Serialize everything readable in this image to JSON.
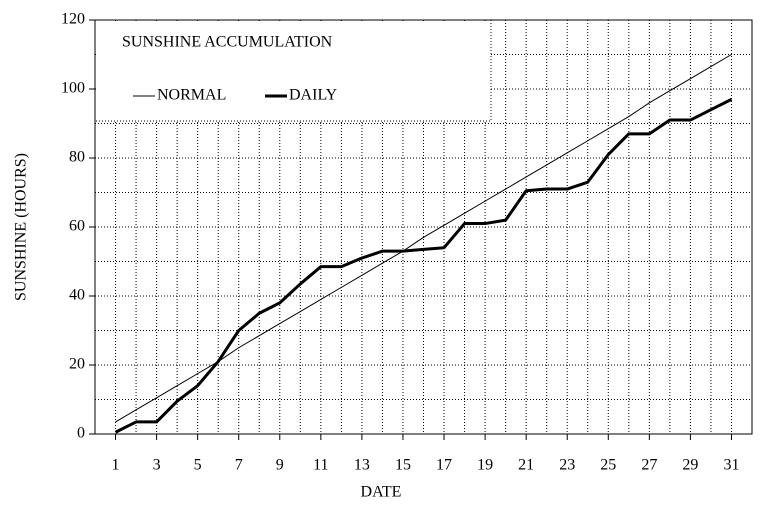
{
  "chart_data": {
    "type": "line",
    "title": "SUNSHINE ACCUMULATION",
    "x_label": "DATE",
    "y_label": "SUNSHINE (HOURS)",
    "x": [
      1,
      2,
      3,
      4,
      5,
      6,
      7,
      8,
      9,
      10,
      11,
      12,
      13,
      14,
      15,
      16,
      17,
      18,
      19,
      20,
      21,
      22,
      23,
      24,
      25,
      26,
      27,
      28,
      29,
      30,
      31
    ],
    "series": [
      {
        "name": "NORMAL",
        "color": "#000000",
        "width": 1,
        "values": [
          3.5,
          7,
          10.5,
          14,
          17.5,
          21,
          25,
          28.5,
          32,
          35.5,
          39,
          42.5,
          46,
          49.5,
          53,
          57,
          60.5,
          64,
          67.5,
          71,
          74.5,
          78,
          81.5,
          85,
          88.5,
          92,
          96,
          99.5,
          103,
          106.5,
          110
        ]
      },
      {
        "name": "DAILY",
        "color": "#000000",
        "width": 3,
        "values": [
          0.5,
          3.5,
          3.5,
          9.5,
          14,
          21,
          30,
          35,
          38,
          43.5,
          48.5,
          48.5,
          51,
          53,
          53,
          53.5,
          54,
          61,
          61,
          62,
          70.5,
          71,
          71,
          73,
          81,
          87,
          87,
          91,
          91,
          94,
          97
        ]
      }
    ],
    "xlim": [
      0,
      32
    ],
    "xticks": [
      1,
      3,
      5,
      7,
      9,
      11,
      13,
      15,
      17,
      19,
      21,
      23,
      25,
      27,
      29,
      31
    ],
    "ylim": [
      0,
      120
    ],
    "yticks": [
      0,
      20,
      40,
      60,
      80,
      100,
      120
    ],
    "grid": true,
    "legend": "top-left"
  }
}
